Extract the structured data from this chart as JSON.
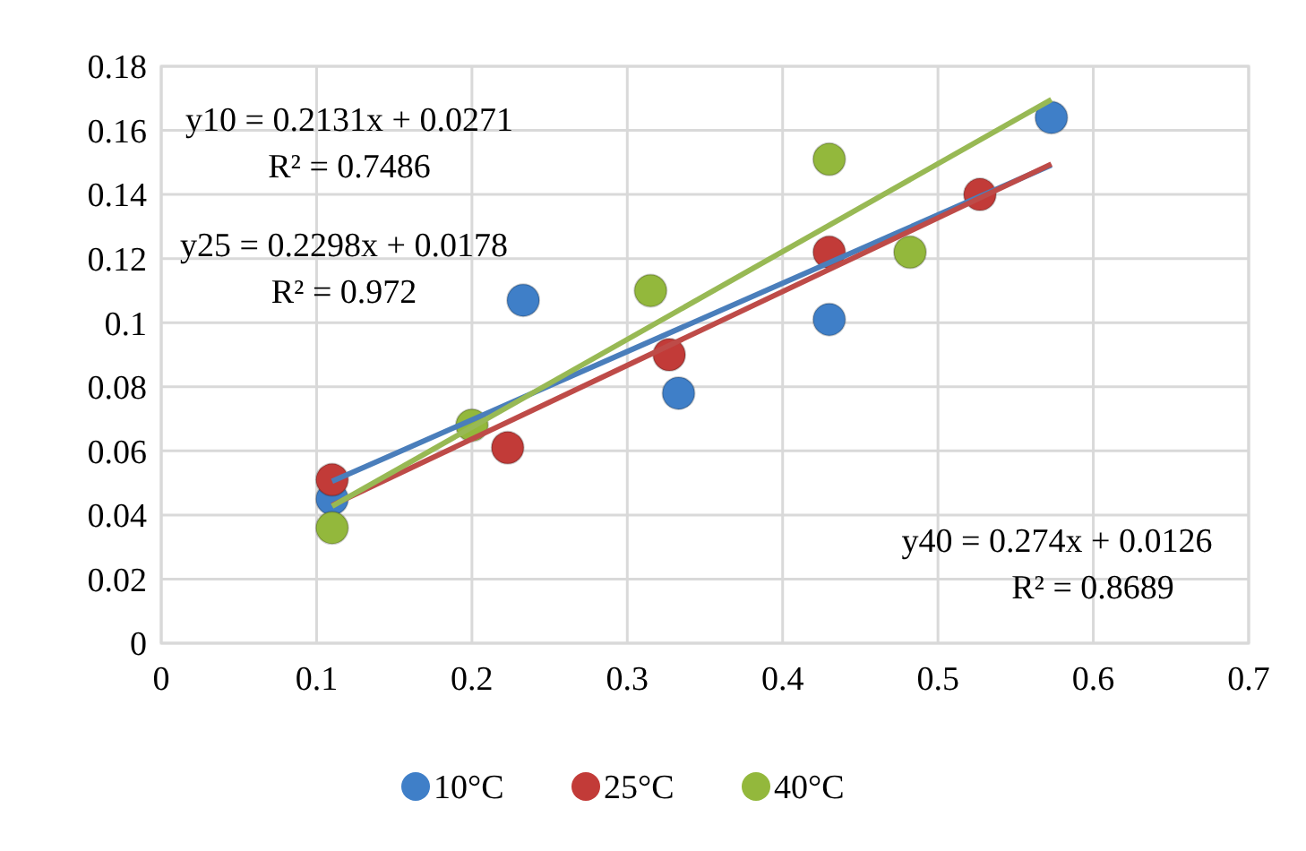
{
  "chart_data": {
    "type": "scatter",
    "xlim": [
      0,
      0.7
    ],
    "xticks": [
      0,
      0.1,
      0.2,
      0.3,
      0.4,
      0.5,
      0.6,
      0.7
    ],
    "ylim": [
      0,
      0.18
    ],
    "yticks": [
      0,
      0.02,
      0.04,
      0.06,
      0.08,
      0.1,
      0.12,
      0.14,
      0.16,
      0.18
    ],
    "grid": true,
    "legend": "bottom",
    "marker": "circle",
    "series": [
      {
        "name": "10°C",
        "color": "#3f7fc8",
        "x": [
          0.11,
          0.233,
          0.333,
          0.43,
          0.573
        ],
        "values": [
          0.045,
          0.107,
          0.078,
          0.101,
          0.164
        ]
      },
      {
        "name": "25°C",
        "color": "#c23b38",
        "x": [
          0.11,
          0.223,
          0.327,
          0.43,
          0.527
        ],
        "values": [
          0.051,
          0.061,
          0.09,
          0.122,
          0.14
        ]
      },
      {
        "name": "40°C",
        "color": "#93b83c",
        "x": [
          0.11,
          0.2,
          0.315,
          0.43,
          0.482
        ],
        "values": [
          0.036,
          0.068,
          0.11,
          0.151,
          0.122
        ]
      },
      {
        "type": "line",
        "color": "#4a7ebb",
        "marker": "none",
        "x": [
          0.11,
          0.573
        ],
        "values": [
          0.0505,
          0.1492
        ]
      },
      {
        "type": "line",
        "color": "#be4b48",
        "marker": "none",
        "x": [
          0.11,
          0.573
        ],
        "values": [
          0.043,
          0.1495
        ]
      },
      {
        "type": "line",
        "color": "#98b954",
        "marker": "none",
        "x": [
          0.11,
          0.573
        ],
        "values": [
          0.0427,
          0.1696
        ]
      }
    ],
    "annotations": [
      "y10 = 0.2131x + 0.0271",
      "R² = 0.7486",
      "y25 = 0.2298x + 0.0178",
      "R² = 0.972",
      "y40 = 0.274x + 0.0126",
      "R² = 0.8689"
    ]
  }
}
